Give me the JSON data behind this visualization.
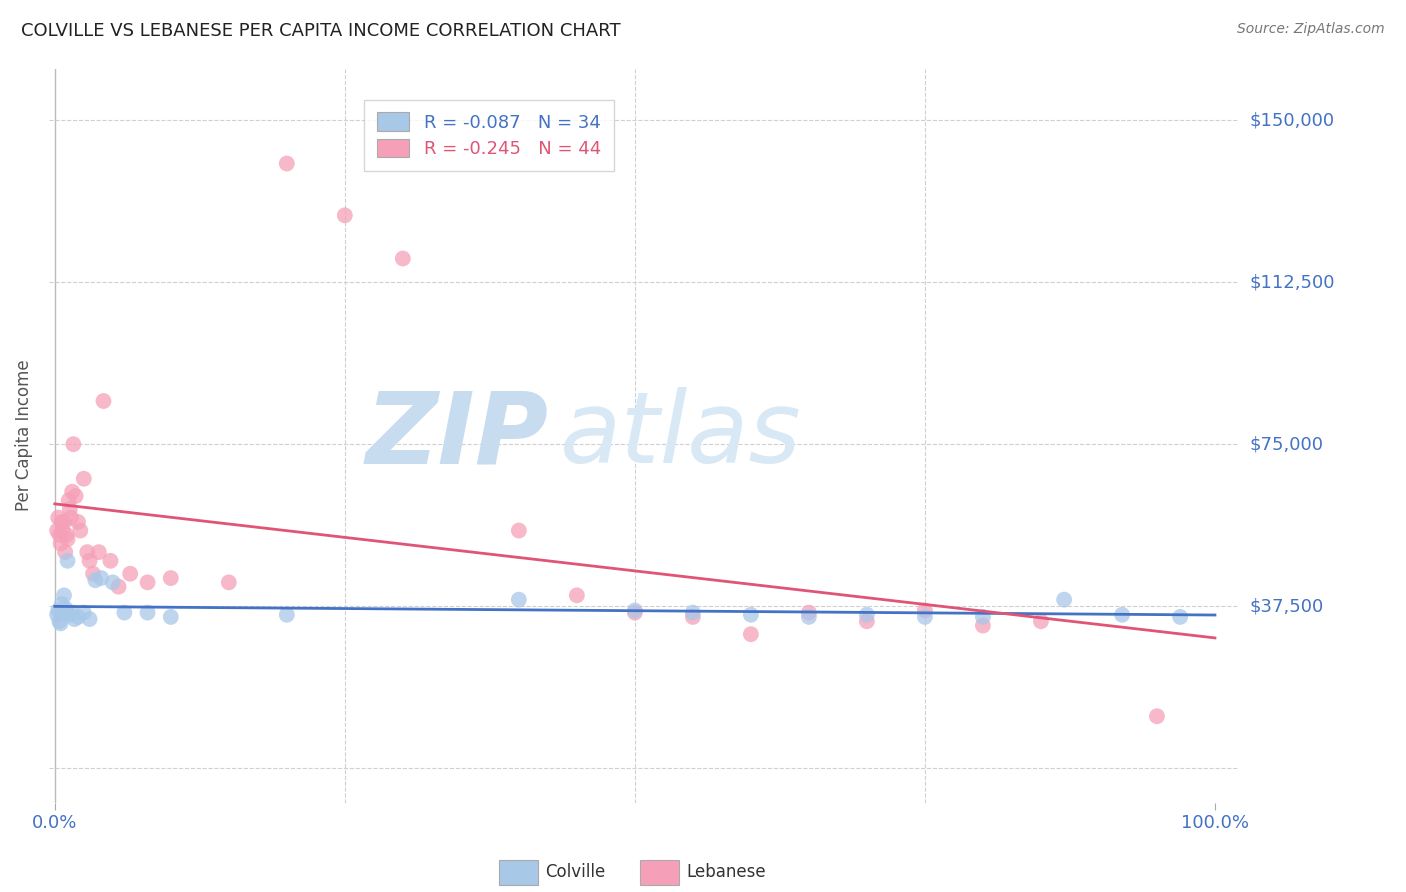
{
  "title": "COLVILLE VS LEBANESE PER CAPITA INCOME CORRELATION CHART",
  "source": "Source: ZipAtlas.com",
  "ylabel": "Per Capita Income",
  "yticks": [
    0,
    37500,
    75000,
    112500,
    150000
  ],
  "ytick_labels": [
    "",
    "$37,500",
    "$75,000",
    "$112,500",
    "$150,000"
  ],
  "ylim": [
    -8000,
    162000
  ],
  "xlim": [
    -0.005,
    1.02
  ],
  "legend_colville": "R = -0.087   N = 34",
  "legend_lebanese": "R = -0.245   N = 44",
  "colville_color": "#a8c8e8",
  "lebanese_color": "#f5a0b8",
  "colville_line_color": "#4472c4",
  "lebanese_line_color": "#e05575",
  "grid_color": "#d0d0d0",
  "background_color": "#ffffff",
  "text_color_blue": "#4472c4",
  "colville_x": [
    0.002,
    0.003,
    0.004,
    0.005,
    0.006,
    0.007,
    0.008,
    0.009,
    0.01,
    0.011,
    0.013,
    0.015,
    0.017,
    0.02,
    0.025,
    0.03,
    0.035,
    0.04,
    0.05,
    0.06,
    0.08,
    0.1,
    0.2,
    0.4,
    0.5,
    0.55,
    0.6,
    0.65,
    0.7,
    0.75,
    0.8,
    0.87,
    0.92,
    0.97
  ],
  "colville_y": [
    35500,
    36500,
    34000,
    33500,
    38000,
    36000,
    40000,
    37000,
    36000,
    48000,
    35500,
    36000,
    34500,
    35000,
    36000,
    34500,
    43500,
    44000,
    43000,
    36000,
    36000,
    35000,
    35500,
    39000,
    36500,
    36000,
    35500,
    35000,
    35500,
    35000,
    35000,
    39000,
    35500,
    35000
  ],
  "lebanese_x": [
    0.002,
    0.003,
    0.004,
    0.005,
    0.006,
    0.007,
    0.008,
    0.009,
    0.01,
    0.011,
    0.012,
    0.013,
    0.014,
    0.015,
    0.016,
    0.018,
    0.02,
    0.022,
    0.025,
    0.028,
    0.03,
    0.033,
    0.038,
    0.042,
    0.048,
    0.055,
    0.065,
    0.08,
    0.1,
    0.15,
    0.2,
    0.25,
    0.3,
    0.4,
    0.45,
    0.5,
    0.55,
    0.6,
    0.65,
    0.7,
    0.75,
    0.8,
    0.85,
    0.95
  ],
  "lebanese_y": [
    55000,
    58000,
    54000,
    52000,
    57000,
    55000,
    57000,
    50000,
    54000,
    53000,
    62000,
    60000,
    58000,
    64000,
    75000,
    63000,
    57000,
    55000,
    67000,
    50000,
    48000,
    45000,
    50000,
    85000,
    48000,
    42000,
    45000,
    43000,
    44000,
    43000,
    140000,
    128000,
    118000,
    55000,
    40000,
    36000,
    35000,
    31000,
    36000,
    34000,
    36500,
    33000,
    34000,
    12000
  ]
}
